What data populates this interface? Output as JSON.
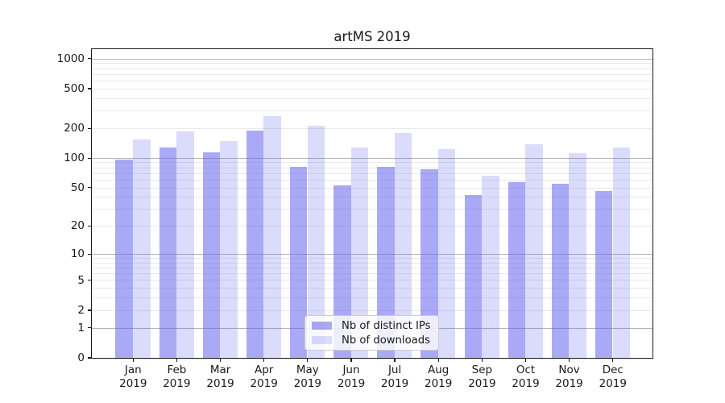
{
  "chart_data": {
    "type": "bar",
    "title": "artMS 2019",
    "categories": [
      "Jan 2019",
      "Feb 2019",
      "Mar 2019",
      "Apr 2019",
      "May 2019",
      "Jun 2019",
      "Jul 2019",
      "Aug 2019",
      "Sep 2019",
      "Oct 2019",
      "Nov 2019",
      "Dec 2019"
    ],
    "series": [
      {
        "name": "Nb of distinct IPs",
        "color": "rgba(102,102,238,0.56)",
        "values": [
          96,
          128,
          115,
          190,
          81,
          53,
          81,
          77,
          42,
          57,
          55,
          46
        ]
      },
      {
        "name": "Nb of downloads",
        "color": "rgba(102,102,238,0.235)",
        "values": [
          155,
          185,
          150,
          266,
          213,
          127,
          178,
          123,
          66,
          137,
          112,
          127
        ]
      }
    ],
    "yscale": "log1p",
    "yticks": [
      1000,
      500,
      200,
      100,
      50,
      20,
      10,
      5,
      2,
      1,
      0
    ],
    "ylim": [
      0,
      1250
    ],
    "xlabel": "",
    "ylabel": "",
    "grid": true,
    "legend_position": "lower center",
    "colors": {
      "bar_base": "#6666ee",
      "grid_major": "#b4b4b4",
      "grid_minor": "#e9e9e9",
      "axis": "#1a1a1a",
      "legend_border": "#cccccc"
    }
  }
}
